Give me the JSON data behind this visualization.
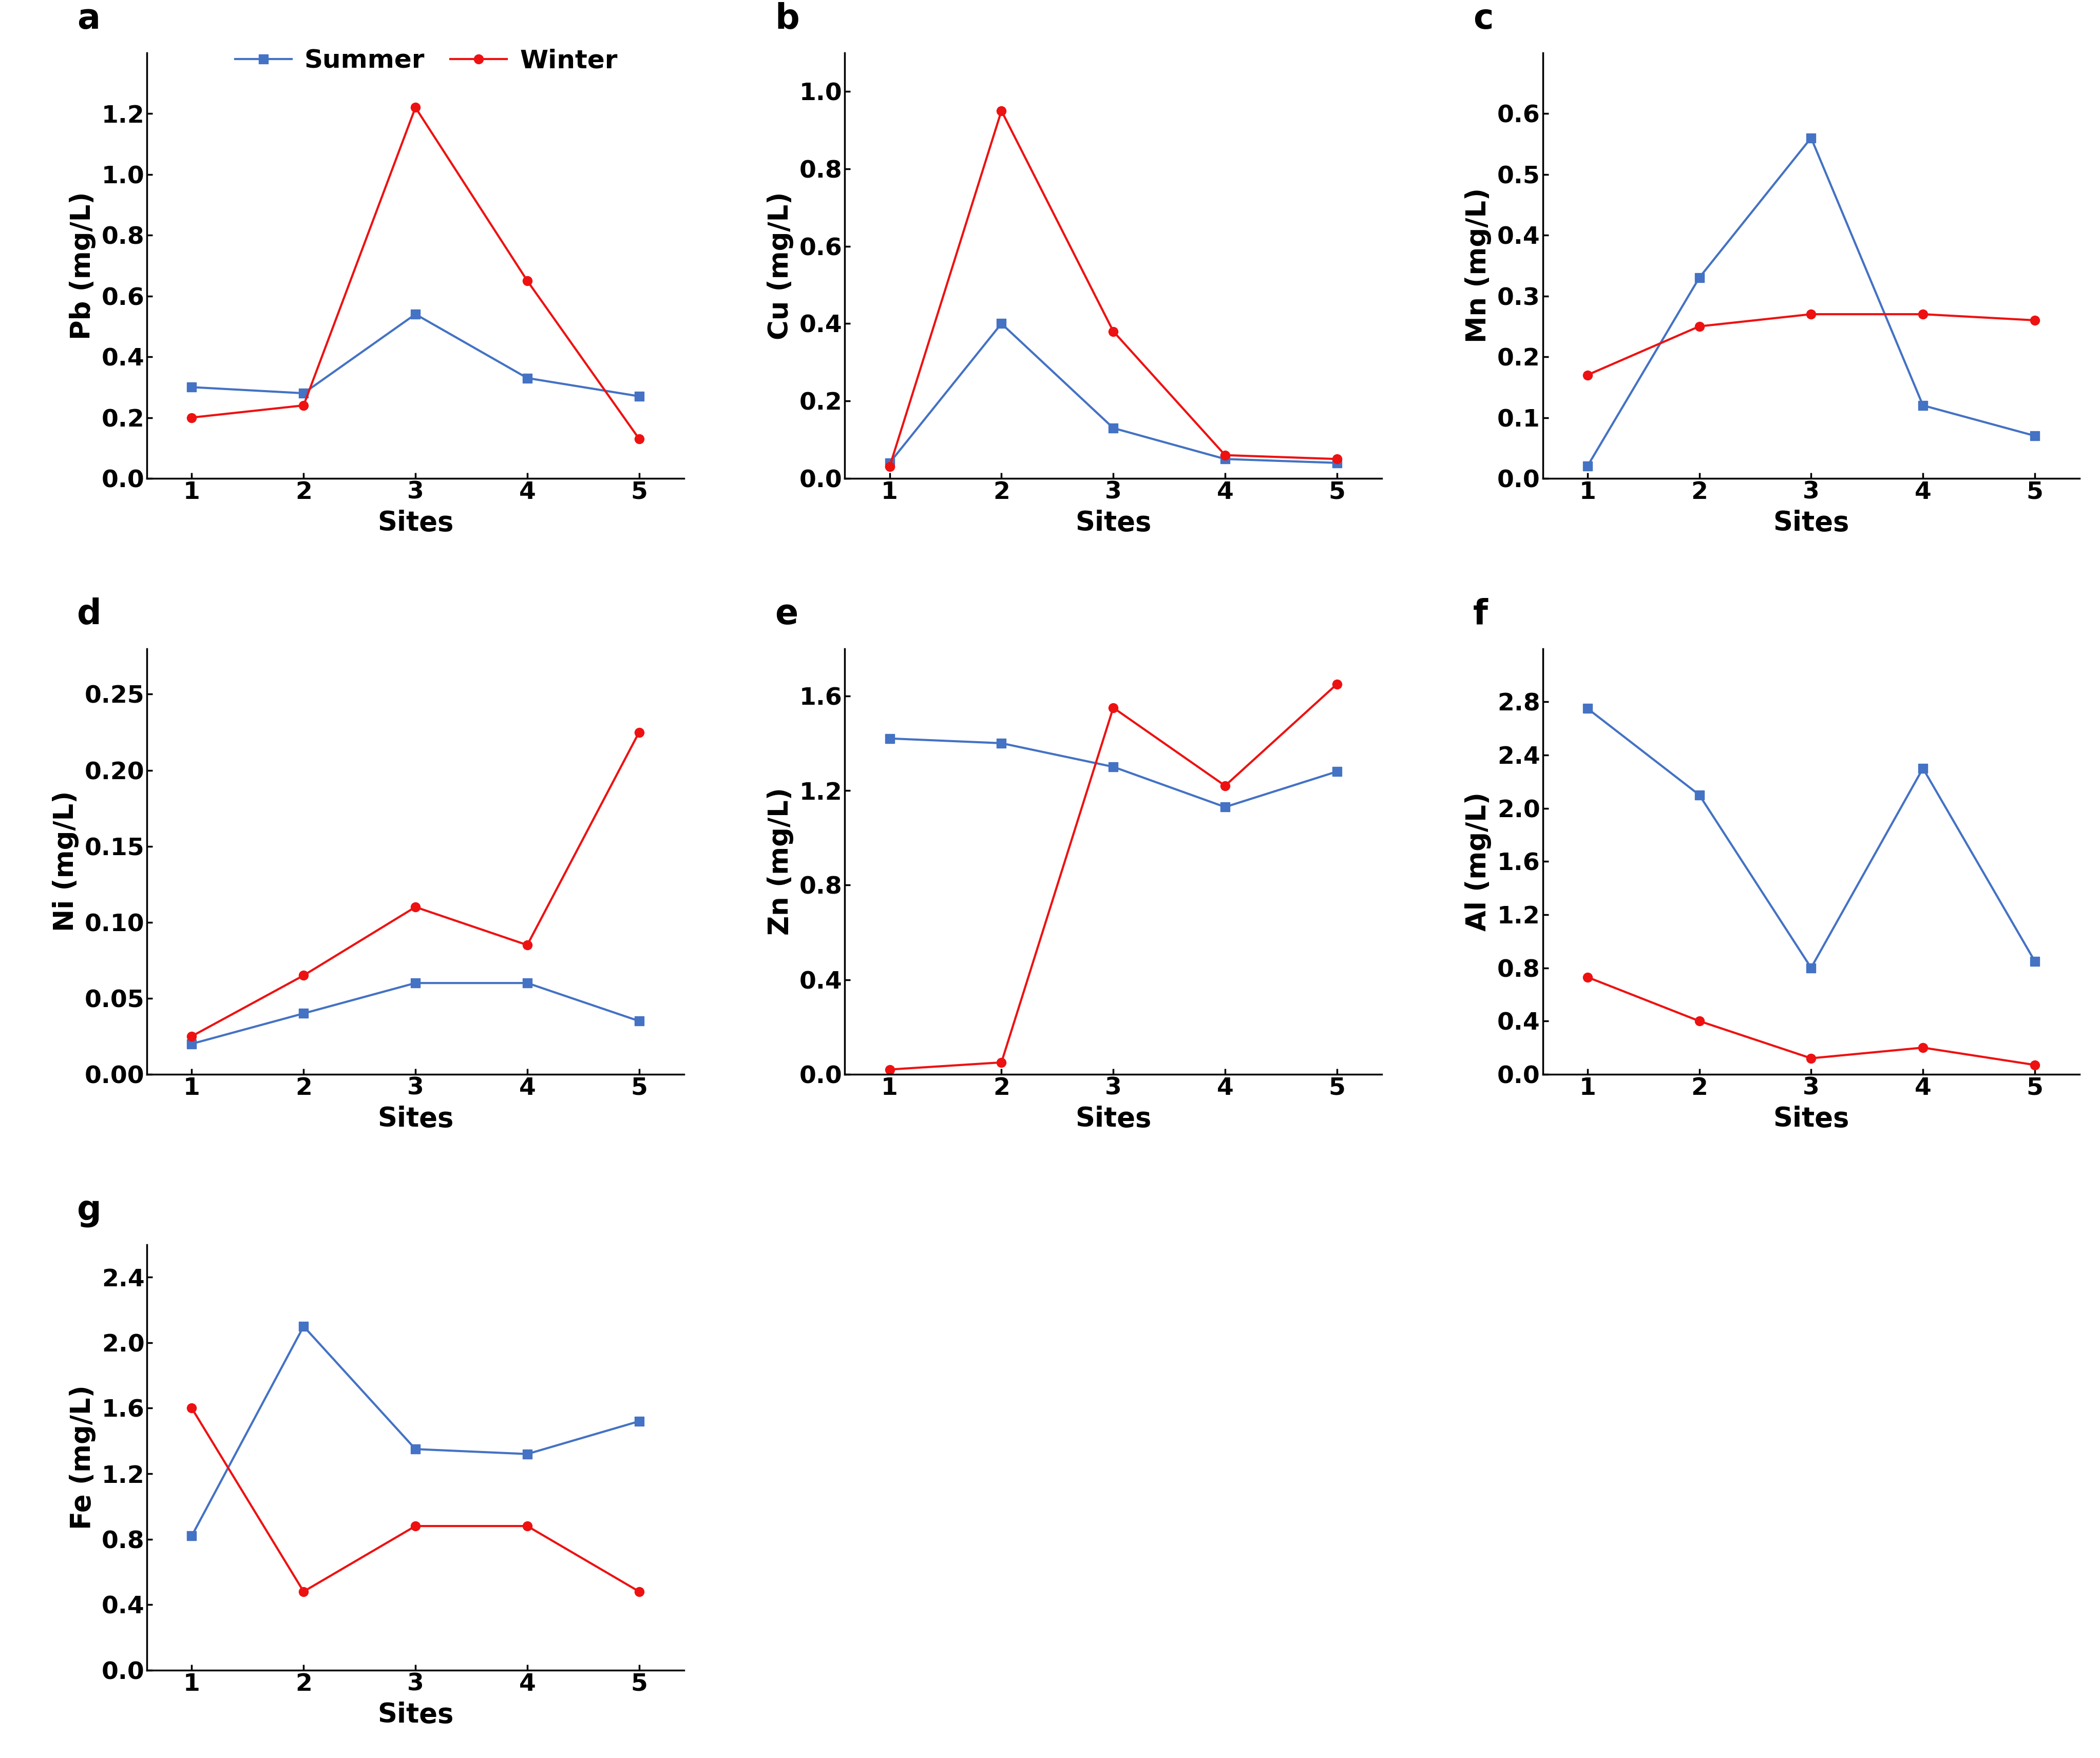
{
  "sites": [
    1,
    2,
    3,
    4,
    5
  ],
  "panels": [
    {
      "label": "a",
      "ylabel": "Pb (mg/L)",
      "ylim": [
        0,
        1.4
      ],
      "yticks": [
        0,
        0.2,
        0.4,
        0.6,
        0.8,
        1.0,
        1.2
      ],
      "summer": [
        0.3,
        0.28,
        0.54,
        0.33,
        0.27
      ],
      "winter": [
        0.2,
        0.24,
        1.22,
        0.65,
        0.13
      ],
      "has_legend": true
    },
    {
      "label": "b",
      "ylabel": "Cu (mg/L)",
      "ylim": [
        0,
        1.1
      ],
      "yticks": [
        0,
        0.2,
        0.4,
        0.6,
        0.8,
        1.0
      ],
      "summer": [
        0.04,
        0.4,
        0.13,
        0.05,
        0.04
      ],
      "winter": [
        0.03,
        0.95,
        0.38,
        0.06,
        0.05
      ],
      "has_legend": false
    },
    {
      "label": "c",
      "ylabel": "Mn (mg/L)",
      "ylim": [
        0,
        0.7
      ],
      "yticks": [
        0,
        0.1,
        0.2,
        0.3,
        0.4,
        0.5,
        0.6
      ],
      "summer": [
        0.02,
        0.33,
        0.56,
        0.12,
        0.07
      ],
      "winter": [
        0.17,
        0.25,
        0.27,
        0.27,
        0.26
      ],
      "has_legend": false
    },
    {
      "label": "d",
      "ylabel": "Ni (mg/L)",
      "ylim": [
        0,
        0.28
      ],
      "yticks": [
        0,
        0.05,
        0.1,
        0.15,
        0.2,
        0.25
      ],
      "summer": [
        0.02,
        0.04,
        0.06,
        0.06,
        0.035
      ],
      "winter": [
        0.025,
        0.065,
        0.11,
        0.085,
        0.225
      ],
      "has_legend": false
    },
    {
      "label": "e",
      "ylabel": "Zn (mg/L)",
      "ylim": [
        0,
        1.8
      ],
      "yticks": [
        0,
        0.4,
        0.8,
        1.2,
        1.6
      ],
      "summer": [
        1.42,
        1.4,
        1.3,
        1.13,
        1.28
      ],
      "winter": [
        0.02,
        0.05,
        1.55,
        1.22,
        1.65
      ],
      "has_legend": false
    },
    {
      "label": "f",
      "ylabel": "Al (mg/L)",
      "ylim": [
        0,
        3.2
      ],
      "yticks": [
        0,
        0.4,
        0.8,
        1.2,
        1.6,
        2.0,
        2.4,
        2.8
      ],
      "summer": [
        2.75,
        2.1,
        0.8,
        2.3,
        0.85
      ],
      "winter": [
        0.73,
        0.4,
        0.12,
        0.2,
        0.07
      ],
      "has_legend": false
    },
    {
      "label": "g",
      "ylabel": "Fe (mg/L)",
      "ylim": [
        0,
        2.6
      ],
      "yticks": [
        0,
        0.4,
        0.8,
        1.2,
        1.6,
        2.0,
        2.4
      ],
      "summer": [
        0.82,
        2.1,
        1.35,
        1.32,
        1.52
      ],
      "winter": [
        1.6,
        0.48,
        0.88,
        0.88,
        0.48
      ],
      "has_legend": false
    }
  ],
  "summer_color": "#4472C4",
  "winter_color": "#EE1111",
  "xlabel": "Sites",
  "linewidth": 3.0,
  "markersize": 13,
  "label_fontsize": 38,
  "tick_fontsize": 34,
  "panel_label_fontsize": 48,
  "legend_fontsize": 36
}
